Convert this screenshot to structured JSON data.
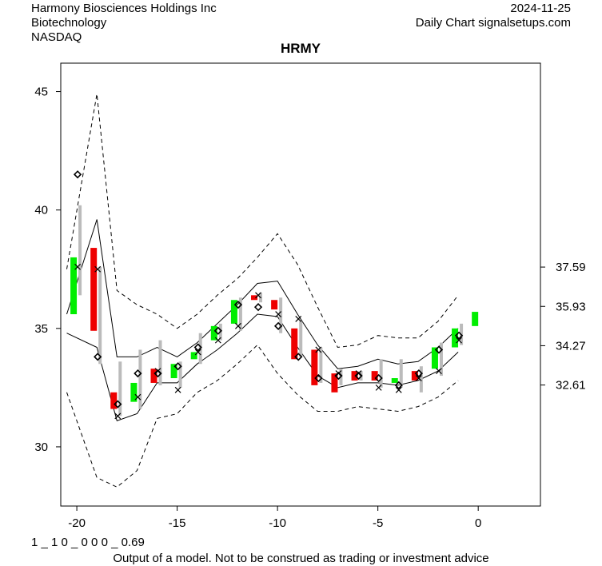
{
  "header": {
    "company": "Harmony Biosciences Holdings Inc",
    "sector": "Biotechnology",
    "exchange": "NASDAQ",
    "date": "2024-11-25",
    "source": "Daily Chart signalsetups.com"
  },
  "footer": {
    "code": "1 _ 1 0 _ 0 0 0 _ 0.69",
    "disclaimer": "Output of a model. Not to be construed as trading or investment advice"
  },
  "chart_data": {
    "type": "candlestick",
    "title": "HRMY",
    "xlim": [
      -20.8,
      3.1
    ],
    "ylim": [
      27.5,
      46.2
    ],
    "x_ticks": [
      -20,
      -15,
      -10,
      -5,
      0
    ],
    "x_tick_labels": [
      "-20",
      "-15",
      "-10",
      "-5",
      "0"
    ],
    "y_ticks_left": [
      30,
      35,
      40,
      45
    ],
    "y_tick_labels_left": [
      "30",
      "35",
      "40",
      "45"
    ],
    "y_ticks_right": [
      37.59,
      35.93,
      34.27,
      32.61
    ],
    "y_tick_labels_right": [
      "37.59",
      "35.93",
      "34.27",
      "32.61"
    ],
    "colors": {
      "up": "#00ee00",
      "down": "#ee0000",
      "range": "#bbbbbb",
      "marker": "#000000"
    },
    "candles": [
      {
        "x": -20,
        "open": 35.6,
        "close": 38.0,
        "high": 38.0,
        "low": 35.6,
        "color": "up"
      },
      {
        "x": -19,
        "open": 38.4,
        "close": 34.9,
        "high": 38.4,
        "low": 34.9,
        "color": "down"
      },
      {
        "x": -18,
        "open": 32.3,
        "close": 31.6,
        "high": 32.4,
        "low": 31.2,
        "color": "down"
      },
      {
        "x": -17,
        "open": 31.9,
        "close": 32.7,
        "high": 34.1,
        "low": 31.8,
        "color": "up"
      },
      {
        "x": -16,
        "open": 33.3,
        "close": 32.7,
        "high": 33.5,
        "low": 32.6,
        "color": "down"
      },
      {
        "x": -15,
        "open": 32.9,
        "close": 33.5,
        "high": 33.5,
        "low": 32.9,
        "color": "up"
      },
      {
        "x": -14,
        "open": 33.7,
        "close": 34.0,
        "high": 34.0,
        "low": 33.7,
        "color": "up"
      },
      {
        "x": -13,
        "open": 34.5,
        "close": 35.1,
        "high": 35.1,
        "low": 34.5,
        "color": "up"
      },
      {
        "x": -12,
        "open": 35.2,
        "close": 36.2,
        "high": 36.2,
        "low": 35.2,
        "color": "up"
      },
      {
        "x": -11,
        "open": 36.4,
        "close": 36.2,
        "high": 36.4,
        "low": 36.1,
        "color": "down"
      },
      {
        "x": -10,
        "open": 36.2,
        "close": 35.8,
        "high": 36.2,
        "low": 35.0,
        "color": "down"
      },
      {
        "x": -9,
        "open": 35.0,
        "close": 33.7,
        "high": 35.2,
        "low": 33.7,
        "color": "down"
      },
      {
        "x": -8,
        "open": 34.1,
        "close": 32.6,
        "high": 34.1,
        "low": 32.6,
        "color": "down"
      },
      {
        "x": -7,
        "open": 33.1,
        "close": 32.3,
        "high": 33.2,
        "low": 32.3,
        "color": "down"
      },
      {
        "x": -6,
        "open": 33.2,
        "close": 32.8,
        "high": 33.2,
        "low": 32.8,
        "color": "down"
      },
      {
        "x": -5,
        "open": 33.2,
        "close": 32.8,
        "high": 33.2,
        "low": 32.8,
        "color": "down"
      },
      {
        "x": -4,
        "open": 32.7,
        "close": 32.9,
        "high": 33.7,
        "low": 32.6,
        "color": "up"
      },
      {
        "x": -3,
        "open": 33.2,
        "close": 32.8,
        "high": 33.2,
        "low": 32.3,
        "color": "down"
      },
      {
        "x": -2,
        "open": 33.3,
        "close": 34.2,
        "high": 34.2,
        "low": 33.3,
        "color": "up"
      },
      {
        "x": -1,
        "open": 34.2,
        "close": 35.0,
        "high": 35.2,
        "low": 34.2,
        "color": "up"
      },
      {
        "x": 0,
        "open": 35.1,
        "close": 35.7,
        "high": 35.7,
        "low": 35.1,
        "color": "up"
      }
    ],
    "range_bars": [
      {
        "x": -20,
        "high": 40.2,
        "low": 36.4
      },
      {
        "x": -19,
        "high": 37.6,
        "low": 33.5
      },
      {
        "x": -18,
        "high": 33.6,
        "low": 31.3
      },
      {
        "x": -17,
        "high": 34.1,
        "low": 31.6
      },
      {
        "x": -16,
        "high": 34.5,
        "low": 32.6
      },
      {
        "x": -15,
        "high": 33.6,
        "low": 32.5
      },
      {
        "x": -14,
        "high": 34.8,
        "low": 33.5
      },
      {
        "x": -13,
        "high": 35.2,
        "low": 34.5
      },
      {
        "x": -12,
        "high": 36.3,
        "low": 34.9
      },
      {
        "x": -11,
        "high": 36.5,
        "low": 36.1
      },
      {
        "x": -10,
        "high": 36.3,
        "low": 34.8
      },
      {
        "x": -9,
        "high": 35.3,
        "low": 33.8
      },
      {
        "x": -8,
        "high": 34.2,
        "low": 32.7
      },
      {
        "x": -7,
        "high": 33.3,
        "low": 32.6
      },
      {
        "x": -6,
        "high": 33.2,
        "low": 32.8
      },
      {
        "x": -5,
        "high": 33.7,
        "low": 32.5
      },
      {
        "x": -4,
        "high": 33.7,
        "low": 32.5
      },
      {
        "x": -3,
        "high": 33.4,
        "low": 32.3
      },
      {
        "x": -2,
        "high": 34.4,
        "low": 33.0
      },
      {
        "x": -1,
        "high": 35.2,
        "low": 34.3
      }
    ],
    "x_markers": [
      {
        "x": -20,
        "y": 37.6
      },
      {
        "x": -19,
        "y": 37.5
      },
      {
        "x": -18,
        "y": 31.3
      },
      {
        "x": -17,
        "y": 32.1
      },
      {
        "x": -16,
        "y": 33.2
      },
      {
        "x": -15,
        "y": 32.4
      },
      {
        "x": -14,
        "y": 34.0
      },
      {
        "x": -13,
        "y": 34.5
      },
      {
        "x": -12,
        "y": 35.1
      },
      {
        "x": -11,
        "y": 36.4
      },
      {
        "x": -10,
        "y": 35.6
      },
      {
        "x": -9,
        "y": 35.4
      },
      {
        "x": -8,
        "y": 34.1
      },
      {
        "x": -7,
        "y": 33.1
      },
      {
        "x": -6,
        "y": 33.1
      },
      {
        "x": -5,
        "y": 32.5
      },
      {
        "x": -4,
        "y": 32.4
      },
      {
        "x": -3,
        "y": 32.9
      },
      {
        "x": -2,
        "y": 33.2
      },
      {
        "x": -1,
        "y": 34.5
      }
    ],
    "diamond_markers": [
      {
        "x": -20,
        "y": 41.5
      },
      {
        "x": -19,
        "y": 33.8
      },
      {
        "x": -18,
        "y": 31.8
      },
      {
        "x": -17,
        "y": 33.1
      },
      {
        "x": -16,
        "y": 33.1
      },
      {
        "x": -15,
        "y": 33.4
      },
      {
        "x": -14,
        "y": 34.2
      },
      {
        "x": -13,
        "y": 34.9
      },
      {
        "x": -12,
        "y": 36.0
      },
      {
        "x": -11,
        "y": 35.9
      },
      {
        "x": -10,
        "y": 35.1
      },
      {
        "x": -9,
        "y": 33.8
      },
      {
        "x": -8,
        "y": 32.9
      },
      {
        "x": -7,
        "y": 33.0
      },
      {
        "x": -6,
        "y": 33.0
      },
      {
        "x": -5,
        "y": 32.9
      },
      {
        "x": -4,
        "y": 32.6
      },
      {
        "x": -3,
        "y": 33.1
      },
      {
        "x": -2,
        "y": 34.1
      },
      {
        "x": -1,
        "y": 34.7
      }
    ],
    "bands": {
      "x": [
        -20.5,
        -19,
        -18,
        -17,
        -16,
        -15,
        -14,
        -13,
        -12,
        -11,
        -10,
        -9,
        -8,
        -7,
        -6,
        -5,
        -4,
        -3,
        -2,
        -1
      ],
      "inner_upper": [
        35.6,
        39.6,
        33.8,
        33.8,
        34.2,
        33.8,
        34.4,
        35.2,
        36.0,
        36.9,
        37.0,
        35.6,
        34.3,
        33.3,
        33.4,
        33.7,
        33.5,
        33.6,
        34.2,
        35.0
      ],
      "inner_lower": [
        34.8,
        34.2,
        31.1,
        31.4,
        32.7,
        32.7,
        33.5,
        34.1,
        34.8,
        35.6,
        35.5,
        34.2,
        33.0,
        32.5,
        32.7,
        32.7,
        32.6,
        32.8,
        33.2,
        34.0
      ],
      "outer_upper": [
        37.5,
        44.9,
        36.6,
        36.0,
        35.6,
        35.0,
        35.6,
        36.4,
        37.1,
        38.0,
        39.0,
        37.7,
        35.9,
        34.2,
        34.3,
        34.7,
        34.6,
        34.6,
        35.3,
        36.4
      ],
      "outer_lower": [
        32.3,
        28.7,
        28.3,
        29.0,
        31.2,
        31.4,
        32.3,
        32.8,
        33.5,
        34.3,
        33.1,
        32.2,
        31.5,
        31.5,
        31.7,
        31.6,
        31.5,
        31.7,
        32.1,
        32.8
      ]
    }
  }
}
